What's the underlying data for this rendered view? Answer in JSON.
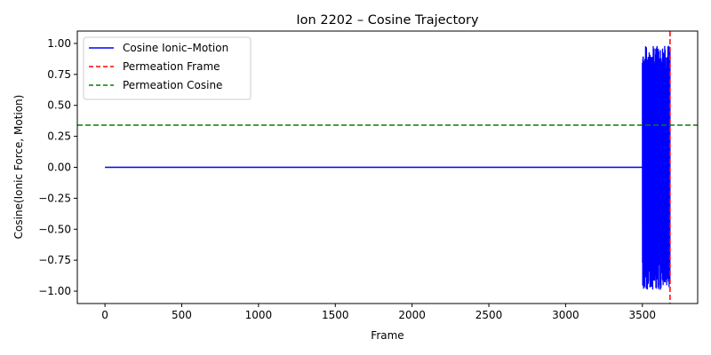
{
  "chart_data": {
    "type": "line",
    "title": "Ion 2202 – Cosine Trajectory",
    "xlabel": "Frame",
    "ylabel": "Cosine(Ionic Force, Motion)",
    "xlim": [
      -180,
      3860
    ],
    "ylim": [
      -1.1,
      1.1
    ],
    "xticks": [
      0,
      500,
      1000,
      1500,
      2000,
      2500,
      3000,
      3500
    ],
    "yticks": [
      -1.0,
      -0.75,
      -0.5,
      -0.25,
      0.0,
      0.25,
      0.5,
      0.75,
      1.0
    ],
    "ytick_labels": [
      "−1.00",
      "−0.75",
      "−0.50",
      "−0.25",
      "0.00",
      "0.25",
      "0.50",
      "0.75",
      "1.00"
    ],
    "grid": false,
    "legend_position": "top-left",
    "series": [
      {
        "name": "Cosine Ionic–Motion",
        "color": "#0000ff",
        "style": "solid",
        "flat_segment": {
          "x_start": 0,
          "x_end": 3500,
          "y": 0.0
        },
        "oscillating_segment": {
          "x_start": 3500,
          "x_end": 3680,
          "y_min": -0.99,
          "y_max": 0.99
        }
      }
    ],
    "reference_lines": [
      {
        "name": "Permeation Frame",
        "orientation": "vertical",
        "value": 3680,
        "color": "#ff0000",
        "style": "dashed"
      },
      {
        "name": "Permeation Cosine",
        "orientation": "horizontal",
        "value": 0.34,
        "color": "#008000",
        "style": "dashed"
      }
    ]
  }
}
